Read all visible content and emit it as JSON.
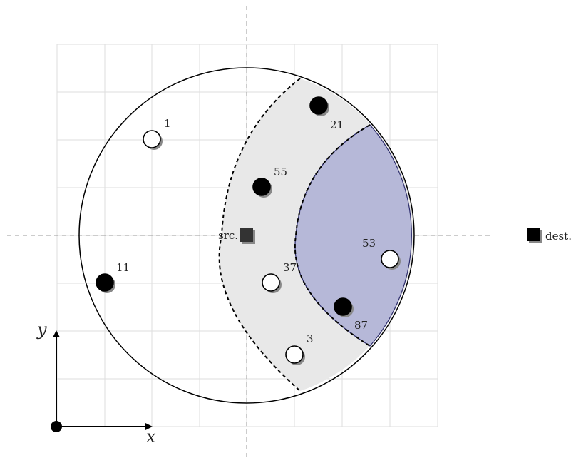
{
  "labels": {
    "source": "src.",
    "destination": "dest.",
    "x_axis": "x",
    "y_axis": "y"
  },
  "colors": {
    "grid": "#dddddd",
    "guide": "#999999",
    "band_fill": "#e8e8e8",
    "lens_fill": "#b6b8d8",
    "filled_node": "#000000",
    "open_node": "#ffffff",
    "shadow": "#888888"
  },
  "nodes": [
    {
      "id": "1",
      "label": "1",
      "filled": false
    },
    {
      "id": "21",
      "label": "21",
      "filled": true
    },
    {
      "id": "55",
      "label": "55",
      "filled": true
    },
    {
      "id": "11",
      "label": "11",
      "filled": true
    },
    {
      "id": "37",
      "label": "37",
      "filled": false
    },
    {
      "id": "53",
      "label": "53",
      "filled": false
    },
    {
      "id": "87",
      "label": "87",
      "filled": true
    },
    {
      "id": "3",
      "label": "3",
      "filled": false
    }
  ]
}
